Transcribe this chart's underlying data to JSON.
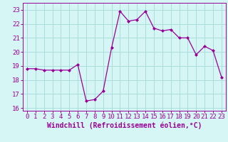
{
  "x": [
    0,
    1,
    2,
    3,
    4,
    5,
    6,
    7,
    8,
    9,
    10,
    11,
    12,
    13,
    14,
    15,
    16,
    17,
    18,
    19,
    20,
    21,
    22,
    23
  ],
  "y": [
    18.8,
    18.8,
    18.7,
    18.7,
    18.7,
    18.7,
    19.1,
    16.5,
    16.6,
    17.2,
    20.3,
    22.9,
    22.2,
    22.3,
    22.9,
    21.7,
    21.5,
    21.6,
    21.0,
    21.0,
    19.8,
    20.4,
    20.1,
    18.2
  ],
  "line_color": "#990099",
  "marker": "D",
  "marker_size": 2.0,
  "bg_color": "#d6f5f5",
  "grid_color": "#aadddd",
  "xlabel": "Windchill (Refroidissement éolien,°C)",
  "xlim": [
    -0.5,
    23.5
  ],
  "ylim": [
    15.8,
    23.5
  ],
  "yticks": [
    16,
    17,
    18,
    19,
    20,
    21,
    22,
    23
  ],
  "xticks": [
    0,
    1,
    2,
    3,
    4,
    5,
    6,
    7,
    8,
    9,
    10,
    11,
    12,
    13,
    14,
    15,
    16,
    17,
    18,
    19,
    20,
    21,
    22,
    23
  ],
  "tick_color": "#990099",
  "label_color": "#990099",
  "font_size": 6.5,
  "linewidth": 0.9
}
